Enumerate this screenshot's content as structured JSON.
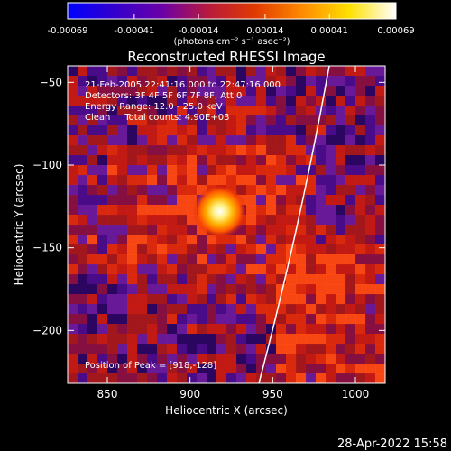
{
  "colorbar": {
    "tick_labels": [
      "-0.00069",
      "-0.00041",
      "-0.00014",
      "0.00014",
      "0.00041",
      "0.00069"
    ],
    "tick_values": [
      -0.00069,
      -0.00041,
      -0.00014,
      0.00014,
      0.00041,
      0.00069
    ],
    "range": [
      -0.00069,
      0.00069
    ],
    "units_label": "(photons cm⁻² s⁻¹ asec⁻²)",
    "colors": [
      "#0000ff",
      "#3300cc",
      "#6a00a8",
      "#b81a3c",
      "#e03a00",
      "#ff8a00",
      "#ffe000",
      "#ffffff"
    ]
  },
  "plot": {
    "title": "Reconstructed RHESSI Image",
    "xlabel": "Heliocentric X (arcsec)",
    "ylabel": "Heliocentric Y (arcsec)",
    "xlim": [
      826,
      1018
    ],
    "ylim": [
      -232,
      -40
    ],
    "x_ticks": [
      850,
      900,
      950,
      1000
    ],
    "y_ticks": [
      -50,
      -100,
      -150,
      -200
    ],
    "x_tick_labels": [
      "850",
      "900",
      "950",
      "1000"
    ],
    "y_tick_labels": [
      "−50",
      "−100",
      "−150",
      "−200"
    ],
    "info_lines": [
      "21-Feb-2005 22:41:16.000 to 22:47:16.000",
      "Detectors: 3F 4F 5F 6F 7F 8F, Att 0",
      "Energy Range: 12.0 - 25.0 keV",
      "Clean     Total counts: 4.90E+03"
    ],
    "peak_text": "Position of Peak = [918,-128]",
    "peak": [
      918,
      -128
    ],
    "limb_color": "#ffffff"
  },
  "footer": {
    "timestamp": "28-Apr-2022 15:58"
  }
}
